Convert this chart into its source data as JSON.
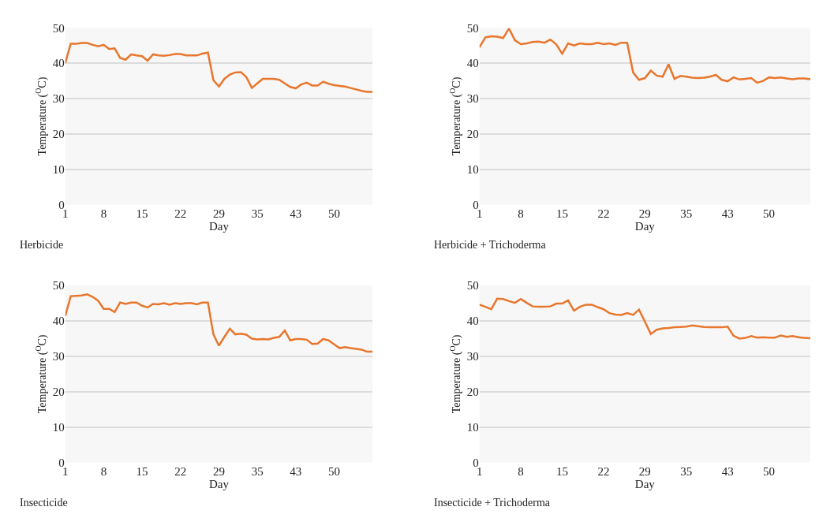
{
  "chart_data": [
    {
      "type": "line",
      "title": "Herbicide",
      "xlabel": "Day",
      "ylabel": "Temperature ($^{O}$C)",
      "categories": [
        "1",
        null,
        null,
        null,
        null,
        null,
        null,
        "8",
        null,
        null,
        null,
        null,
        null,
        null,
        "15",
        null,
        null,
        null,
        null,
        null,
        null,
        "22",
        null,
        null,
        null,
        null,
        null,
        null,
        "29",
        null,
        null,
        null,
        null,
        null,
        null,
        "35",
        null,
        null,
        null,
        null,
        null,
        null,
        "43",
        null,
        null,
        null,
        null,
        null,
        null,
        "50",
        null,
        null,
        null,
        null,
        null,
        null,
        null
      ],
      "series": [
        {
          "color": "#e8762d",
          "values": [
            40.0,
            45.5,
            45.5,
            45.7,
            45.7,
            45.2,
            44.8,
            45.2,
            44.0,
            44.2,
            41.5,
            41.0,
            42.5,
            42.2,
            42.0,
            40.7,
            42.5,
            42.2,
            42.1,
            42.3,
            42.6,
            42.6,
            42.2,
            42.2,
            42.2,
            42.7,
            43.0,
            35.2,
            33.4,
            35.6,
            36.8,
            37.4,
            37.5,
            36.1,
            33.0,
            34.3,
            35.6,
            35.6,
            35.6,
            35.3,
            34.3,
            33.3,
            32.9,
            34.0,
            34.5,
            33.7,
            33.7,
            34.8,
            34.2,
            33.8,
            33.6,
            33.4,
            33.0,
            32.6,
            32.2,
            31.9,
            31.9
          ]
        }
      ],
      "ylim": [
        0,
        50
      ],
      "yticks": [
        0,
        10,
        20,
        30,
        40,
        50
      ],
      "grid": "y",
      "marker": "none",
      "line_style": "solid"
    },
    {
      "type": "line",
      "title": "Herbicide + Trichoderma",
      "xlabel": "Day",
      "ylabel": "Temperature ($^{O}$C)",
      "categories": [
        "1",
        null,
        null,
        null,
        null,
        null,
        null,
        "8",
        null,
        null,
        null,
        null,
        null,
        null,
        "15",
        null,
        null,
        null,
        null,
        null,
        null,
        "22",
        null,
        null,
        null,
        null,
        null,
        null,
        "29",
        null,
        null,
        null,
        null,
        null,
        null,
        "35",
        null,
        null,
        null,
        null,
        null,
        null,
        "43",
        null,
        null,
        null,
        null,
        null,
        null,
        "50",
        null,
        null,
        null,
        null,
        null,
        null,
        null
      ],
      "series": [
        {
          "color": "#e8762d",
          "values": [
            44.5,
            47.3,
            47.6,
            47.5,
            47.1,
            49.8,
            46.5,
            45.4,
            45.6,
            46.0,
            46.1,
            45.8,
            46.7,
            45.3,
            42.7,
            45.6,
            45.0,
            45.6,
            45.4,
            45.4,
            45.8,
            45.4,
            45.6,
            45.2,
            45.8,
            45.8,
            37.4,
            35.3,
            35.8,
            37.9,
            36.5,
            36.2,
            39.7,
            35.6,
            36.4,
            36.2,
            35.9,
            35.8,
            35.9,
            36.2,
            36.7,
            35.3,
            34.9,
            36.0,
            35.4,
            35.6,
            35.8,
            34.5,
            35.0,
            36.0,
            35.8,
            36.0,
            35.7,
            35.5,
            35.7,
            35.7,
            35.5
          ]
        }
      ],
      "ylim": [
        0,
        50
      ],
      "yticks": [
        0,
        10,
        20,
        30,
        40,
        50
      ],
      "grid": "y",
      "marker": "none",
      "line_style": "solid"
    },
    {
      "type": "line",
      "title": "Insecticide",
      "xlabel": "Day",
      "ylabel": "Temperature ($^{O}$C)",
      "categories": [
        "1",
        null,
        null,
        null,
        null,
        null,
        null,
        "8",
        null,
        null,
        null,
        null,
        null,
        null,
        "15",
        null,
        null,
        null,
        null,
        null,
        null,
        "22",
        null,
        null,
        null,
        null,
        null,
        null,
        "29",
        null,
        null,
        null,
        null,
        null,
        null,
        "35",
        null,
        null,
        null,
        null,
        null,
        null,
        "43",
        null,
        null,
        null,
        null,
        null,
        null,
        "50",
        null,
        null,
        null,
        null,
        null,
        null,
        null
      ],
      "series": [
        {
          "color": "#e8762d",
          "values": [
            41.4,
            47.0,
            47.1,
            47.2,
            47.5,
            46.8,
            45.7,
            43.4,
            43.4,
            42.5,
            45.2,
            44.8,
            45.2,
            45.2,
            44.3,
            43.8,
            44.8,
            44.7,
            45.0,
            44.6,
            45.0,
            44.8,
            45.0,
            45.0,
            44.7,
            45.2,
            45.2,
            36.2,
            33.0,
            35.5,
            37.8,
            36.2,
            36.4,
            36.1,
            35.0,
            34.8,
            34.9,
            34.8,
            35.2,
            35.5,
            37.3,
            34.5,
            34.9,
            34.9,
            34.7,
            33.5,
            33.6,
            34.9,
            34.5,
            33.4,
            32.3,
            32.6,
            32.3,
            32.1,
            31.9,
            31.3,
            31.3
          ]
        }
      ],
      "ylim": [
        0,
        50
      ],
      "yticks": [
        0,
        10,
        20,
        30,
        40,
        50
      ],
      "grid": "y",
      "marker": "none",
      "line_style": "solid"
    },
    {
      "type": "line",
      "title": "Insecticide + Trichoderma",
      "xlabel": "Day",
      "ylabel": "Temperature ($^{O}$C)",
      "categories": [
        "1",
        null,
        null,
        null,
        null,
        null,
        null,
        "8",
        null,
        null,
        null,
        null,
        null,
        null,
        "15",
        null,
        null,
        null,
        null,
        null,
        null,
        "22",
        null,
        null,
        null,
        null,
        null,
        null,
        "29",
        null,
        null,
        null,
        null,
        null,
        null,
        "35",
        null,
        null,
        null,
        null,
        null,
        null,
        "43",
        null,
        null,
        null,
        null,
        null,
        null,
        "50",
        null,
        null,
        null,
        null,
        null,
        null,
        null
      ],
      "series": [
        {
          "color": "#e8762d",
          "values": [
            44.6,
            44.0,
            43.3,
            46.3,
            46.2,
            45.6,
            45.1,
            46.2,
            45.1,
            44.1,
            44.0,
            44.0,
            44.1,
            44.9,
            44.9,
            45.8,
            42.9,
            44.0,
            44.6,
            44.6,
            43.9,
            43.3,
            42.2,
            41.8,
            41.7,
            42.2,
            41.7,
            43.2,
            39.8,
            36.3,
            37.5,
            37.9,
            38.0,
            38.2,
            38.3,
            38.4,
            38.7,
            38.5,
            38.3,
            38.2,
            38.2,
            38.2,
            38.4,
            35.8,
            35.0,
            35.2,
            35.7,
            35.3,
            35.4,
            35.3,
            35.3,
            35.9,
            35.5,
            35.7,
            35.4,
            35.2,
            35.1
          ]
        }
      ],
      "ylim": [
        0,
        50
      ],
      "yticks": [
        0,
        10,
        20,
        30,
        40,
        50
      ],
      "grid": "y",
      "marker": "none",
      "line_style": "solid"
    }
  ]
}
